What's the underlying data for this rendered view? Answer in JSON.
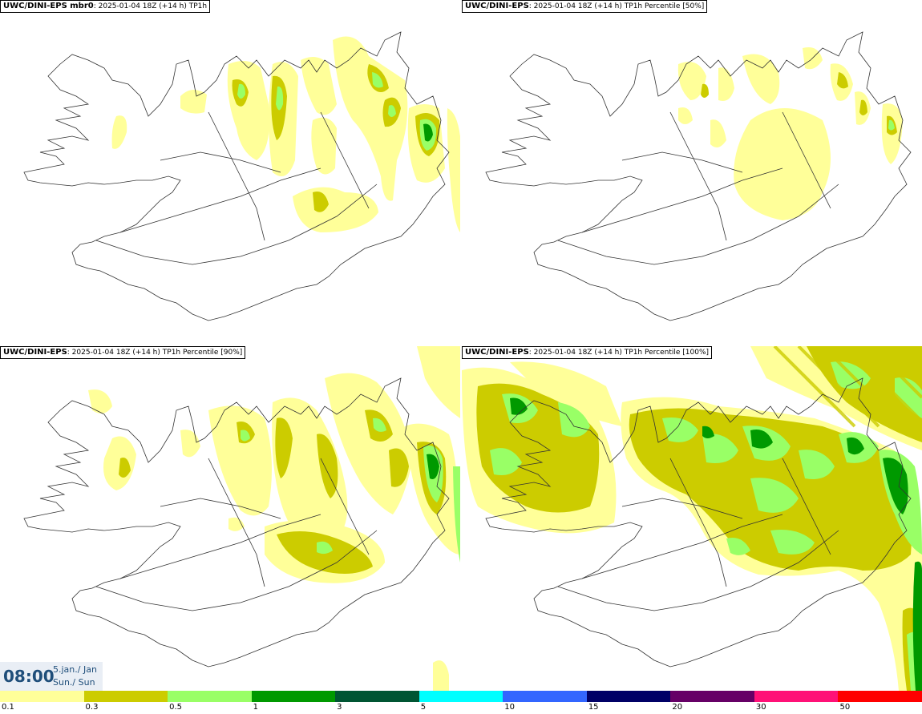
{
  "panels": [
    {
      "model": "UWC/DINI-EPS mbr0",
      "meta": "2025-01-04 18Z (+14 h)",
      "field": "TP1h"
    },
    {
      "model": "UWC/DINI-EPS",
      "meta": "2025-01-04 18Z (+14 h)",
      "field": "TP1h Percentile [50%]"
    },
    {
      "model": "UWC/DINI-EPS",
      "meta": "2025-01-04 18Z (+14 h)",
      "field": "TP1h Percentile [90%]"
    },
    {
      "model": "UWC/DINI-EPS",
      "meta": "2025-01-04 18Z (+14 h)",
      "field": "TP1h Percentile [100%]"
    }
  ],
  "valid_time": {
    "time": "08:00",
    "date_line1": "5.jan./ Jan",
    "date_line2": "Sun./ Sun"
  },
  "legend": {
    "levels": [
      "0.1",
      "0.3",
      "0.5",
      "1",
      "3",
      "5",
      "10",
      "15",
      "20",
      "30",
      "50"
    ],
    "colors": [
      "#ffff99",
      "#cccc00",
      "#99ff66",
      "#009900",
      "#005533",
      "#00ffff",
      "#3366ff",
      "#000066",
      "#660066",
      "#ff1177",
      "#ff0000"
    ]
  },
  "map_colors": {
    "light": "#ffff99",
    "olive": "#cccc00",
    "lightgreen": "#99ff66",
    "green": "#009900",
    "coast": "#333333"
  }
}
